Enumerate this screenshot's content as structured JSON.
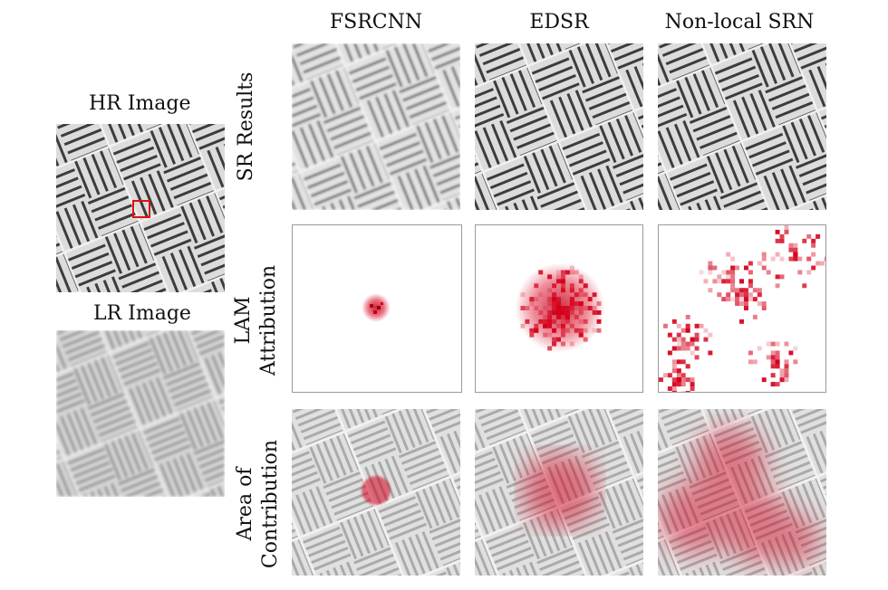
{
  "left": {
    "hr_title": "HR Image",
    "lr_title": "LR Image",
    "roi_color": "#e01010"
  },
  "columns": [
    {
      "title": "FSRCNN"
    },
    {
      "title": "EDSR"
    },
    {
      "title": "Non-local SRN"
    }
  ],
  "rows": [
    {
      "label_lines": [
        "SR Results"
      ]
    },
    {
      "label_lines": [
        "LAM",
        "Attribution"
      ]
    },
    {
      "label_lines": [
        "Area of",
        "Contribution"
      ]
    }
  ],
  "colors": {
    "attribution": "#d4001a",
    "texture_light": "#dedede",
    "texture_dark": "#3a3a3a"
  }
}
